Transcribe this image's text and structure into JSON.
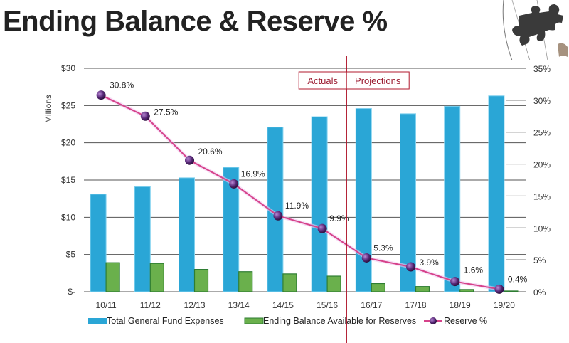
{
  "title": "Ending Balance & Reserve %",
  "logo": {
    "icon": "puzzle-piece-icon"
  },
  "chart_data": {
    "type": "bar",
    "title": "Ending Balance & Reserve %",
    "categories": [
      "10/11",
      "11/12",
      "12/13",
      "13/14",
      "14/15",
      "15/16",
      "16/17",
      "17/18",
      "18/19",
      "19/20"
    ],
    "series": [
      {
        "name": "Total General Fund Expenses",
        "kind": "bar",
        "axis": "left",
        "color": "#2aa6d6",
        "values": [
          13.1,
          14.1,
          15.3,
          16.7,
          22.1,
          23.5,
          24.6,
          23.9,
          24.9,
          26.3
        ]
      },
      {
        "name": "Ending Balance Available for Reserves",
        "kind": "bar",
        "axis": "left",
        "color": "#6ab04c",
        "values": [
          3.9,
          3.8,
          3.0,
          2.7,
          2.4,
          2.1,
          1.1,
          0.7,
          0.3,
          0.1
        ]
      },
      {
        "name": "Reserve %",
        "kind": "line",
        "axis": "right",
        "color": "#d6428a",
        "marker_color": "#5a2a7a",
        "values": [
          30.8,
          27.5,
          20.6,
          16.9,
          11.9,
          9.9,
          5.3,
          3.9,
          1.6,
          0.4
        ],
        "labels": [
          "30.8%",
          "27.5%",
          "20.6%",
          "16.9%",
          "11.9%",
          "9.9%",
          "5.3%",
          "3.9%",
          "1.6%",
          "0.4%"
        ]
      }
    ],
    "ylabel": "Millions",
    "ylim": [
      0,
      30
    ],
    "y_ticks": [
      0,
      5,
      10,
      15,
      20,
      25,
      30
    ],
    "y_tick_labels": [
      "$-",
      "$5",
      "$10",
      "$15",
      "$20",
      "$25",
      "$30"
    ],
    "y2lim": [
      0,
      35
    ],
    "y2_ticks": [
      0,
      5,
      10,
      15,
      20,
      25,
      30,
      35
    ],
    "y2_tick_labels": [
      "0%",
      "5%",
      "10%",
      "15%",
      "20%",
      "25%",
      "30%",
      "35%"
    ],
    "grid": true,
    "legend_position": "bottom",
    "annotations": {
      "divider_after_category": "15/16",
      "left_label": "Actuals",
      "right_label": "Projections",
      "color": "#b0182e"
    }
  }
}
